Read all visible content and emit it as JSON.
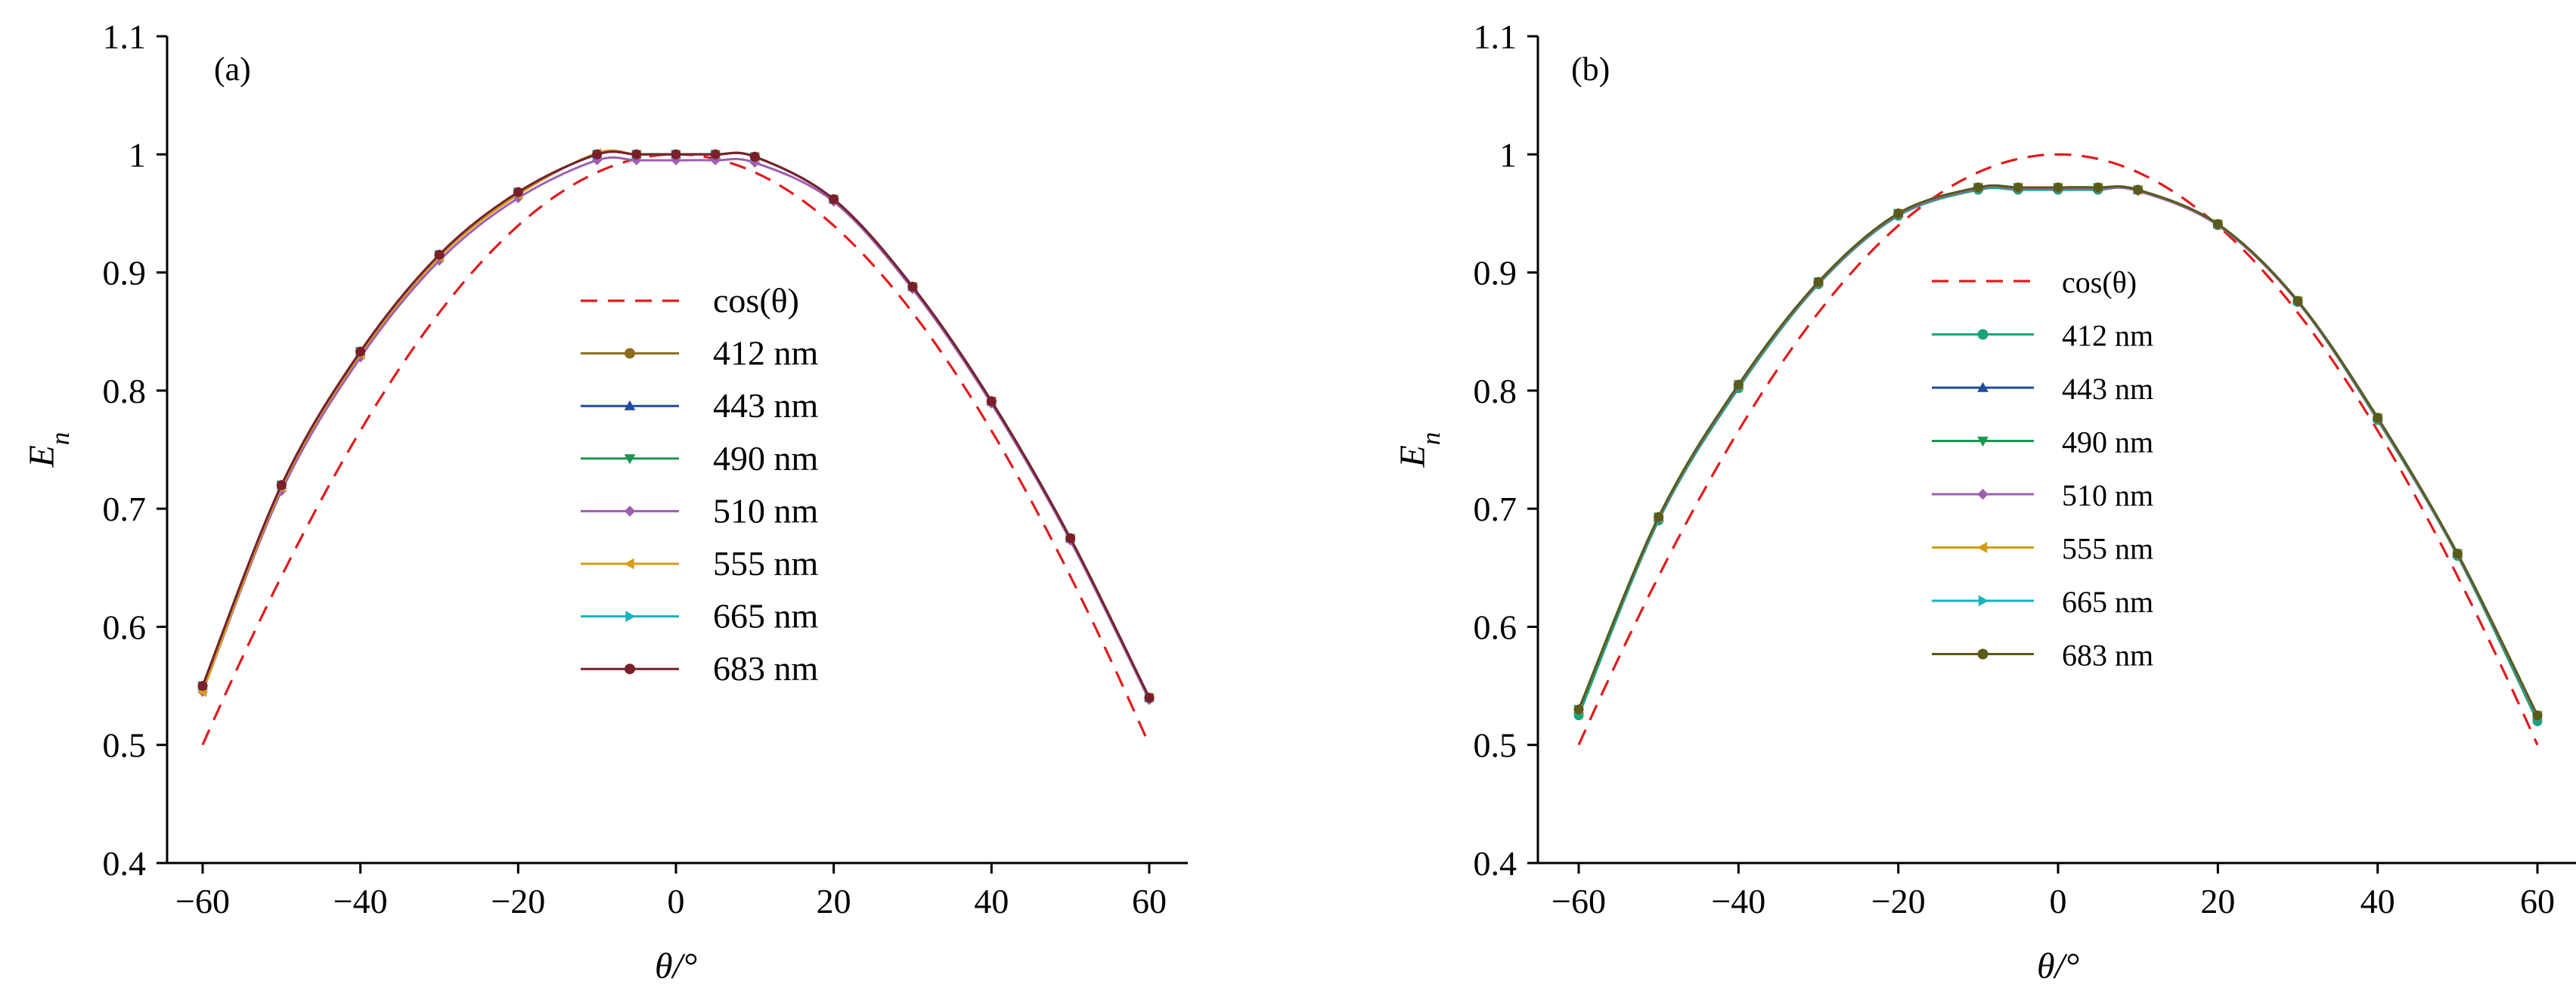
{
  "chart_data": [
    {
      "type": "line",
      "panel_label": "(a)",
      "xlabel": "θ/°",
      "ylabel": "En",
      "xlim": [
        -60,
        60
      ],
      "ylim": [
        0.4,
        1.1
      ],
      "xticks": [
        -60,
        -40,
        -20,
        0,
        20,
        40,
        60
      ],
      "yticks": [
        0.4,
        0.5,
        0.6,
        0.7,
        0.8,
        0.9,
        1.0,
        1.1
      ],
      "grid": false,
      "legend_position": "center",
      "reference": {
        "name": "cos(θ)",
        "color": "#e31a1c",
        "style": "dashed"
      },
      "series": [
        {
          "name": "412 nm",
          "color": "#8c6d1f",
          "marker": "circle",
          "x": [
            -60,
            -50,
            -40,
            -30,
            -20,
            -10,
            -5,
            0,
            5,
            10,
            20,
            30,
            40,
            50,
            60
          ],
          "y": [
            0.55,
            0.72,
            0.833,
            0.915,
            0.968,
            1.0,
            1.0,
            1.0,
            1.0,
            0.998,
            0.962,
            0.888,
            0.791,
            0.675,
            0.54
          ]
        },
        {
          "name": "443 nm",
          "color": "#1f4e9c",
          "marker": "triangle-up",
          "x": [
            -60,
            -50,
            -40,
            -30,
            -20,
            -10,
            -5,
            0,
            5,
            10,
            20,
            30,
            40,
            50,
            60
          ],
          "y": [
            0.55,
            0.72,
            0.833,
            0.915,
            0.968,
            1.0,
            1.0,
            1.0,
            1.0,
            0.998,
            0.962,
            0.888,
            0.791,
            0.675,
            0.54
          ]
        },
        {
          "name": "490 nm",
          "color": "#1a9850",
          "marker": "triangle-down",
          "x": [
            -60,
            -50,
            -40,
            -30,
            -20,
            -10,
            -5,
            0,
            5,
            10,
            20,
            30,
            40,
            50,
            60
          ],
          "y": [
            0.55,
            0.72,
            0.833,
            0.915,
            0.968,
            1.0,
            1.0,
            1.0,
            1.0,
            0.998,
            0.962,
            0.888,
            0.791,
            0.675,
            0.54
          ]
        },
        {
          "name": "510 nm",
          "color": "#9e5fb0",
          "marker": "diamond",
          "x": [
            -60,
            -50,
            -40,
            -30,
            -20,
            -10,
            -5,
            0,
            5,
            10,
            20,
            30,
            40,
            50,
            60
          ],
          "y": [
            0.545,
            0.715,
            0.828,
            0.91,
            0.963,
            0.995,
            0.995,
            0.995,
            0.995,
            0.993,
            0.96,
            0.886,
            0.789,
            0.673,
            0.538
          ]
        },
        {
          "name": "555 nm",
          "color": "#d89b17",
          "marker": "triangle-left",
          "x": [
            -60,
            -50,
            -40,
            -30,
            -20,
            -10,
            -5,
            0,
            5,
            10,
            20,
            30,
            40,
            50,
            60
          ],
          "y": [
            0.545,
            0.718,
            0.831,
            0.913,
            0.966,
            1.001,
            1.0,
            1.0,
            1.0,
            0.998,
            0.962,
            0.888,
            0.791,
            0.675,
            0.54
          ]
        },
        {
          "name": "665 nm",
          "color": "#17b3c2",
          "marker": "triangle-right",
          "x": [
            -60,
            -50,
            -40,
            -30,
            -20,
            -10,
            -5,
            0,
            5,
            10,
            20,
            30,
            40,
            50,
            60
          ],
          "y": [
            0.55,
            0.72,
            0.833,
            0.915,
            0.968,
            1.0,
            1.0,
            1.0,
            1.0,
            0.998,
            0.962,
            0.888,
            0.791,
            0.675,
            0.54
          ]
        },
        {
          "name": "683 nm",
          "color": "#7a1f2b",
          "marker": "circle",
          "x": [
            -60,
            -50,
            -40,
            -30,
            -20,
            -10,
            -5,
            0,
            5,
            10,
            20,
            30,
            40,
            50,
            60
          ],
          "y": [
            0.55,
            0.72,
            0.833,
            0.915,
            0.968,
            1.0,
            1.0,
            1.0,
            1.0,
            0.998,
            0.962,
            0.888,
            0.791,
            0.675,
            0.54
          ]
        }
      ]
    },
    {
      "type": "line",
      "panel_label": "(b)",
      "xlabel": "θ/°",
      "ylabel": "En",
      "xlim": [
        -60,
        60
      ],
      "ylim": [
        0.4,
        1.1
      ],
      "xticks": [
        -60,
        -40,
        -20,
        0,
        20,
        40,
        60
      ],
      "yticks": [
        0.4,
        0.5,
        0.6,
        0.7,
        0.8,
        0.9,
        1.0,
        1.1
      ],
      "grid": false,
      "legend_position": "center",
      "reference": {
        "name": "cos(θ)",
        "color": "#e31a1c",
        "style": "dashed"
      },
      "series": [
        {
          "name": "412 nm",
          "color": "#1aa37a",
          "marker": "circle",
          "x": [
            -60,
            -50,
            -40,
            -30,
            -20,
            -10,
            -5,
            0,
            5,
            10,
            20,
            30,
            40,
            50,
            60
          ],
          "y": [
            0.525,
            0.69,
            0.802,
            0.89,
            0.948,
            0.97,
            0.97,
            0.97,
            0.97,
            0.97,
            0.94,
            0.875,
            0.775,
            0.66,
            0.52
          ]
        },
        {
          "name": "443 nm",
          "color": "#1f4e9c",
          "marker": "triangle-up",
          "x": [
            -60,
            -50,
            -40,
            -30,
            -20,
            -10,
            -5,
            0,
            5,
            10,
            20,
            30,
            40,
            50,
            60
          ],
          "y": [
            0.53,
            0.693,
            0.805,
            0.892,
            0.95,
            0.972,
            0.972,
            0.972,
            0.972,
            0.97,
            0.941,
            0.876,
            0.777,
            0.662,
            0.525
          ]
        },
        {
          "name": "490 nm",
          "color": "#1a9850",
          "marker": "triangle-down",
          "x": [
            -60,
            -50,
            -40,
            -30,
            -20,
            -10,
            -5,
            0,
            5,
            10,
            20,
            30,
            40,
            50,
            60
          ],
          "y": [
            0.53,
            0.693,
            0.805,
            0.892,
            0.95,
            0.972,
            0.972,
            0.972,
            0.972,
            0.97,
            0.941,
            0.876,
            0.777,
            0.662,
            0.525
          ]
        },
        {
          "name": "510 nm",
          "color": "#9e5fb0",
          "marker": "diamond",
          "x": [
            -60,
            -50,
            -40,
            -30,
            -20,
            -10,
            -5,
            0,
            5,
            10,
            20,
            30,
            40,
            50,
            60
          ],
          "y": [
            0.53,
            0.692,
            0.804,
            0.891,
            0.949,
            0.971,
            0.971,
            0.971,
            0.971,
            0.969,
            0.94,
            0.875,
            0.776,
            0.661,
            0.524
          ]
        },
        {
          "name": "555 nm",
          "color": "#d89b17",
          "marker": "triangle-left",
          "x": [
            -60,
            -50,
            -40,
            -30,
            -20,
            -10,
            -5,
            0,
            5,
            10,
            20,
            30,
            40,
            50,
            60
          ],
          "y": [
            0.53,
            0.693,
            0.805,
            0.892,
            0.95,
            0.972,
            0.972,
            0.972,
            0.972,
            0.97,
            0.941,
            0.876,
            0.777,
            0.662,
            0.525
          ]
        },
        {
          "name": "665 nm",
          "color": "#17b3c2",
          "marker": "triangle-right",
          "x": [
            -60,
            -50,
            -40,
            -30,
            -20,
            -10,
            -5,
            0,
            5,
            10,
            20,
            30,
            40,
            50,
            60
          ],
          "y": [
            0.53,
            0.693,
            0.805,
            0.892,
            0.95,
            0.972,
            0.972,
            0.972,
            0.972,
            0.97,
            0.941,
            0.876,
            0.777,
            0.662,
            0.525
          ]
        },
        {
          "name": "683 nm",
          "color": "#5a5a1a",
          "marker": "circle",
          "x": [
            -60,
            -50,
            -40,
            -30,
            -20,
            -10,
            -5,
            0,
            5,
            10,
            20,
            30,
            40,
            50,
            60
          ],
          "y": [
            0.53,
            0.693,
            0.805,
            0.892,
            0.95,
            0.972,
            0.972,
            0.972,
            0.972,
            0.97,
            0.941,
            0.876,
            0.777,
            0.662,
            0.525
          ]
        }
      ]
    }
  ]
}
